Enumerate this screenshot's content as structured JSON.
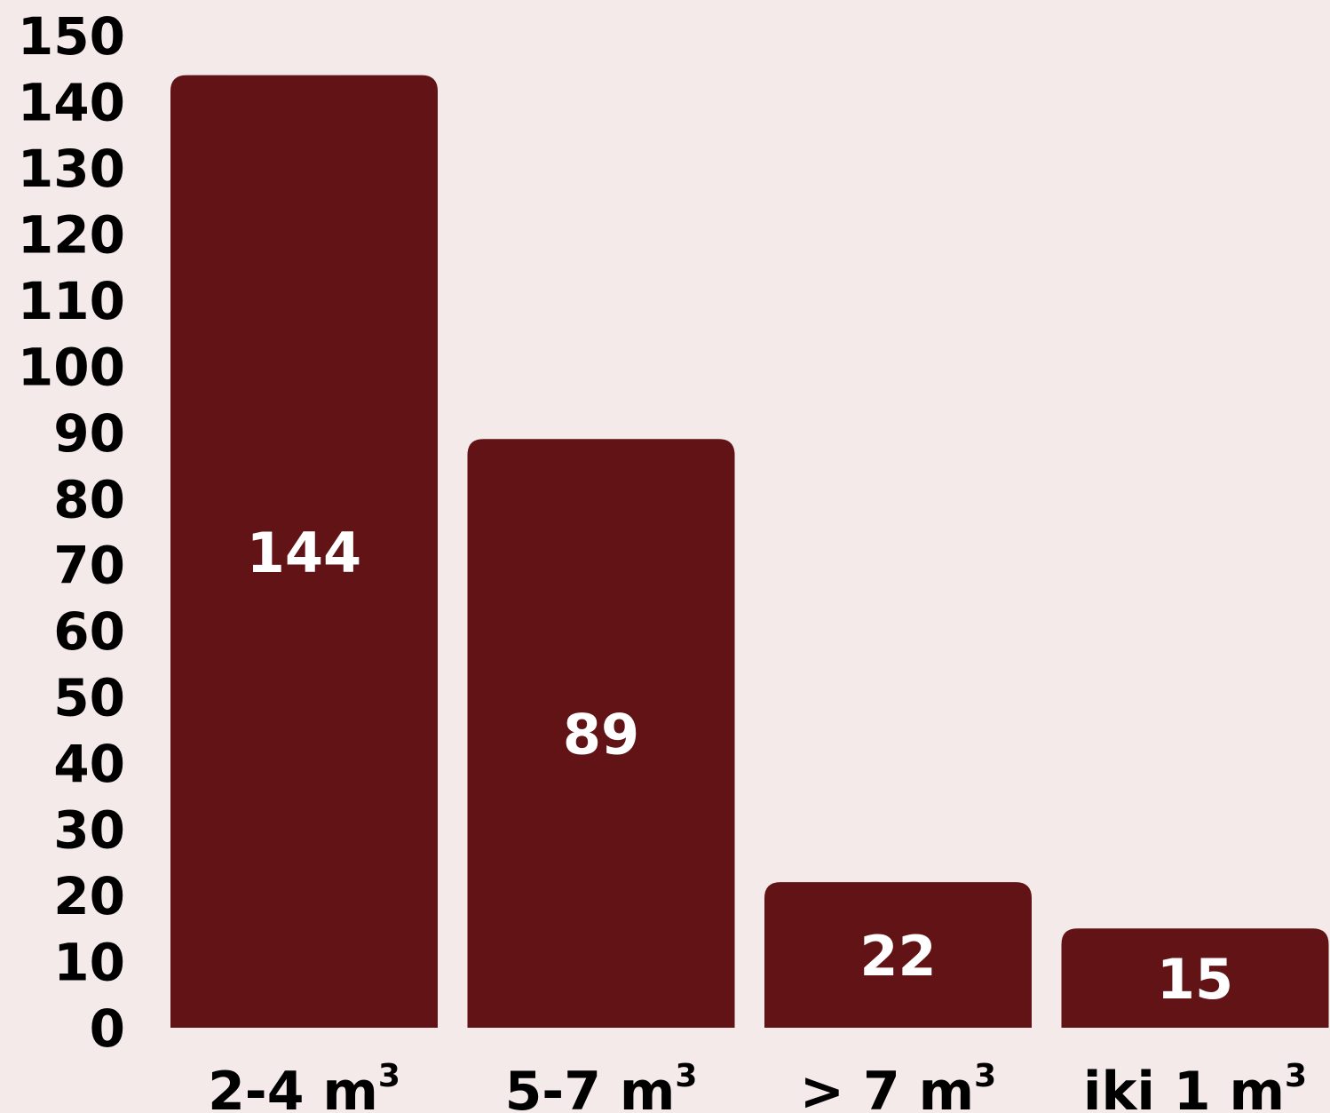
{
  "chart_data": {
    "type": "bar",
    "categories": [
      {
        "base": "2-4 m",
        "sup": "3"
      },
      {
        "base": "5-7 m",
        "sup": "3"
      },
      {
        "base": "> 7 m",
        "sup": "3"
      },
      {
        "base": "iki 1 m",
        "sup": "3"
      }
    ],
    "values": [
      144,
      89,
      22,
      15
    ],
    "value_labels": [
      "144",
      "89",
      "22",
      "15"
    ],
    "title": "",
    "xlabel": "",
    "ylabel": "",
    "ylim": [
      0,
      150
    ],
    "y_ticks": [
      "0",
      "10",
      "20",
      "30",
      "40",
      "50",
      "60",
      "70",
      "80",
      "90",
      "100",
      "110",
      "120",
      "130",
      "140",
      "150"
    ],
    "grid": false,
    "legend": "none",
    "colors": {
      "background": "#f3eae9",
      "bar": "#621315",
      "bar_label": "#ffffff",
      "axis_text": "#000000"
    }
  }
}
